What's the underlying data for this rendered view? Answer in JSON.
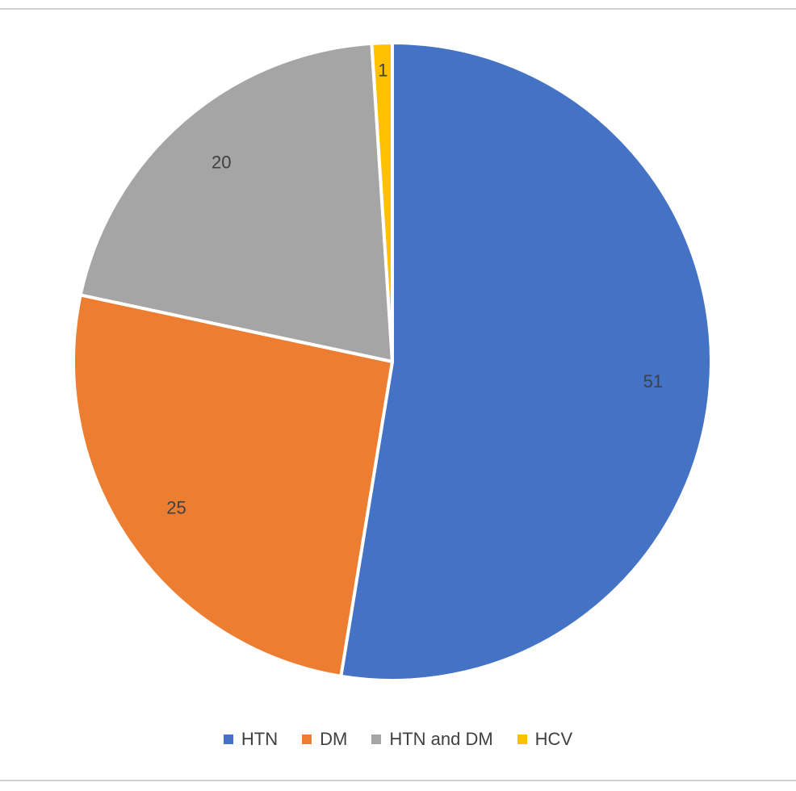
{
  "chart_data": {
    "type": "pie",
    "title": "",
    "legend_position": "bottom",
    "slices": [
      {
        "label": "HTN",
        "value": 51,
        "color": "#4472C4"
      },
      {
        "label": "DM",
        "value": 25,
        "color": "#ED7D31"
      },
      {
        "label": "HTN and DM",
        "value": 20,
        "color": "#A5A5A5"
      },
      {
        "label": "HCV",
        "value": 1,
        "color": "#FFC000"
      }
    ]
  }
}
